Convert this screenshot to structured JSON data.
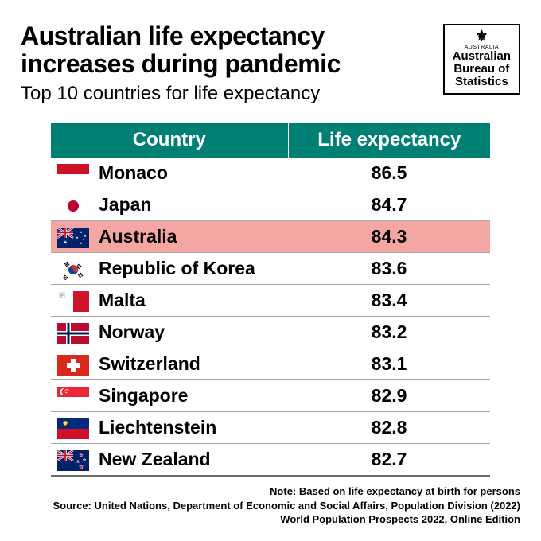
{
  "title_line1": "Australian life expectancy",
  "title_line2": "increases during pandemic",
  "subtitle": "Top 10 countries for life expectancy",
  "logo": {
    "crest_label": "AUSTRALIA",
    "line1": "Australian",
    "line2": "Bureau of",
    "line3": "Statistics"
  },
  "table": {
    "type": "table",
    "header_bg": "#008073",
    "header_fg": "#ffffff",
    "highlight_bg": "#f4a6a2",
    "row_border": "#a8a8a8",
    "font_size": 23,
    "columns": [
      "Country",
      "Life expectancy"
    ],
    "rows": [
      {
        "country": "Monaco",
        "value": "86.5",
        "highlight": false,
        "flag_svg": "<svg viewBox='0 0 40 26'><rect width='40' height='13' fill='#ce1126'/><rect y='13' width='40' height='13' fill='#ffffff'/></svg>"
      },
      {
        "country": "Japan",
        "value": "84.7",
        "highlight": false,
        "flag_svg": "<svg viewBox='0 0 40 26'><rect width='40' height='26' fill='#ffffff'/><circle cx='20' cy='13' r='7' fill='#bc002d'/></svg>"
      },
      {
        "country": "Australia",
        "value": "84.3",
        "highlight": true,
        "flag_svg": "<svg viewBox='0 0 40 26'><rect width='40' height='26' fill='#012169'/><rect width='20' height='13' fill='#012169'/><path d='M0 0 L20 13 M20 0 L0 13' stroke='#fff' stroke-width='2.5'/><path d='M0 0 L20 13 M20 0 L0 13' stroke='#c8102e' stroke-width='1'/><path d='M10 0 V13 M0 6.5 H20' stroke='#fff' stroke-width='3.5'/><path d='M10 0 V13 M0 6.5 H20' stroke='#c8102e' stroke-width='1.8'/><g fill='#fff'><polygon points='10,16 10.6,17.8 12.5,17.8 11,18.9 11.5,20.7 10,19.6 8.5,20.7 9,18.9 7.5,17.8 9.4,17.8'/><polygon points='30,4 30.4,5.2 31.6,5.2 30.6,5.9 31,7.1 30,6.4 29,7.1 29.4,5.9 28.4,5.2 29.6,5.2'/><polygon points='25,11 25.4,12.2 26.6,12.2 25.6,12.9 26,14.1 25,13.4 24,14.1 24.4,12.9 23.4,12.2 24.6,12.2'/><polygon points='35,9 35.4,10.2 36.6,10.2 35.6,10.9 36,12.1 35,11.4 34,12.1 34.4,10.9 33.4,10.2 34.6,10.2'/><polygon points='30,18 30.4,19.2 31.6,19.2 30.6,19.9 31,21.1 30,20.4 29,21.1 29.4,19.9 28.4,19.2 29.6,19.2'/><polygon points='33,14 33.3,14.8 34.1,14.8 33.5,15.3 33.7,16.1 33,15.6 32.3,16.1 32.5,15.3 31.9,14.8 32.7,14.8'/></g></svg>"
      },
      {
        "country": "Republic of Korea",
        "value": "83.6",
        "highlight": false,
        "flag_svg": "<svg viewBox='0 0 40 26'><rect width='40' height='26' fill='#ffffff'/><circle cx='20' cy='13' r='6' fill='#cd2e3a'/><path d='M14 13 A6 6 0 0 0 26 13 A3 3 0 0 1 20 13 A3 3 0 0 0 14 13' fill='#0047a0'/><g stroke='#000' stroke-width='1.2'><g transform='translate(9,6) rotate(-35)'><line x1='0' y1='0' x2='5' y2='0'/><line x1='0' y1='1.8' x2='5' y2='1.8'/><line x1='0' y1='3.6' x2='5' y2='3.6'/></g><g transform='translate(26,6) rotate(35)'><line x1='0' y1='0' x2='5' y2='0'/><line x1='0' y1='1.8' x2='2' y2='1.8'/><line x1='3' y1='1.8' x2='5' y2='1.8'/><line x1='0' y1='3.6' x2='5' y2='3.6'/></g><g transform='translate(9,20) rotate(35)'><line x1='0' y1='0' x2='2' y2='0'/><line x1='3' y1='0' x2='5' y2='0'/><line x1='0' y1='1.8' x2='5' y2='1.8'/><line x1='0' y1='3.6' x2='2' y2='3.6'/><line x1='3' y1='3.6' x2='5' y2='3.6'/></g><g transform='translate(26,20) rotate(-35)'><line x1='0' y1='0' x2='2' y2='0'/><line x1='3' y1='0' x2='5' y2='0'/><line x1='0' y1='1.8' x2='2' y2='1.8'/><line x1='3' y1='1.8' x2='5' y2='1.8'/><line x1='0' y1='3.6' x2='2' y2='3.6'/><line x1='3' y1='3.6' x2='5' y2='3.6'/></g></g></svg>"
      },
      {
        "country": "Malta",
        "value": "83.4",
        "highlight": false,
        "flag_svg": "<svg viewBox='0 0 40 26'><rect width='20' height='26' fill='#ffffff'/><rect x='20' width='20' height='26' fill='#cf142b'/><rect x='3' y='2' width='6' height='6' fill='none' stroke='#b0b0b0' stroke-width='0.8'/><path d='M5.5 3 V7 M4 5 H8' stroke='#b0b0b0' stroke-width='1.2'/></svg>"
      },
      {
        "country": "Norway",
        "value": "83.2",
        "highlight": false,
        "flag_svg": "<svg viewBox='0 0 40 26'><rect width='40' height='26' fill='#ba0c2f'/><rect x='11' width='6' height='26' fill='#fff'/><rect y='10' width='40' height='6' fill='#fff'/><rect x='12.5' width='3' height='26' fill='#00205b'/><rect y='11.5' width='40' height='3' fill='#00205b'/></svg>"
      },
      {
        "country": "Switzerland",
        "value": "83.1",
        "highlight": false,
        "flag_svg": "<svg viewBox='0 0 40 26'><rect width='40' height='26' fill='#da291c'/><rect x='17' y='5' width='6' height='16' fill='#fff'/><rect x='12' y='10' width='16' height='6' fill='#fff'/></svg>"
      },
      {
        "country": "Singapore",
        "value": "82.9",
        "highlight": false,
        "flag_svg": "<svg viewBox='0 0 40 26'><rect width='40' height='13' fill='#ee2536'/><rect y='13' width='40' height='13' fill='#ffffff'/><circle cx='8' cy='6.5' r='4.5' fill='#fff'/><circle cx='10' cy='6.5' r='4.5' fill='#ee2536'/><g fill='#fff'><circle cx='12' cy='3.5' r='0.8'/><circle cx='10' cy='5' r='0.8'/><circle cx='14' cy='5' r='0.8'/><circle cx='10.8' cy='7.5' r='0.8'/><circle cx='13.2' cy='7.5' r='0.8'/></g></svg>"
      },
      {
        "country": "Liechtenstein",
        "value": "82.8",
        "highlight": false,
        "flag_svg": "<svg viewBox='0 0 40 26'><rect width='40' height='13' fill='#002b7f'/><rect y='13' width='40' height='13' fill='#ce1126'/><path d='M7 4 Q10 2 13 4 Q13 8 10 9 Q7 8 7 4' fill='#ffd83d' stroke='#000' stroke-width='0.3'/></svg>"
      },
      {
        "country": "New Zealand",
        "value": "82.7",
        "highlight": false,
        "flag_svg": "<svg viewBox='0 0 40 26'><rect width='40' height='26' fill='#012169'/><path d='M0 0 L20 13 M20 0 L0 13' stroke='#fff' stroke-width='2.5'/><path d='M0 0 L20 13 M20 0 L0 13' stroke='#c8102e' stroke-width='1'/><path d='M10 0 V13 M0 6.5 H20' stroke='#fff' stroke-width='3.5'/><path d='M10 0 V13 M0 6.5 H20' stroke='#c8102e' stroke-width='1.8'/><g fill='#c8102e' stroke='#fff' stroke-width='0.5'><polygon points='30,4 30.6,5.7 32.3,5.7 30.9,6.8 31.4,8.5 30,7.5 28.6,8.5 29.1,6.8 27.7,5.7 29.4,5.7'/><polygon points='26,12 26.5,13.4 28,13.4 26.8,14.3 27.2,15.7 26,14.9 24.8,15.7 25.2,14.3 24,13.4 25.5,13.4'/><polygon points='34,10 34.5,11.4 36,11.4 34.8,12.3 35.2,13.7 34,12.9 32.8,13.7 33.2,12.3 32,11.4 33.5,11.4'/><polygon points='30,18 30.7,19.9 32.6,19.9 31,21.1 31.6,23 30,21.9 28.4,23 29,21.1 27.4,19.9 29.3,19.9'/></g></svg>"
      }
    ]
  },
  "footer": {
    "note": "Note: Based on life expectancy at birth for persons",
    "source1": "Source: United Nations, Department of Economic and Social Affairs, Population Division (2022)",
    "source2": "World Population Prospects 2022, Online Edition"
  }
}
